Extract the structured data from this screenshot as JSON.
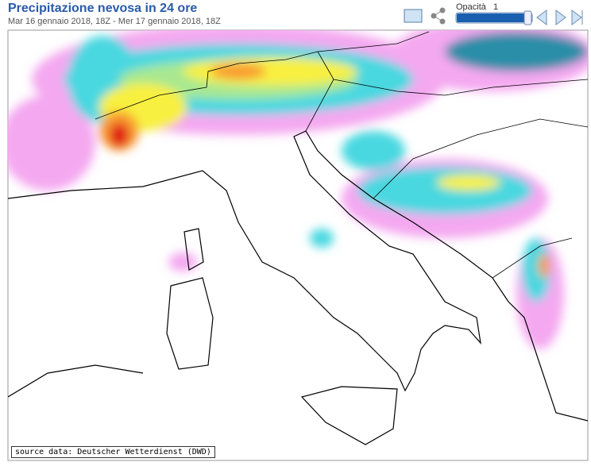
{
  "header": {
    "title": "Precipitazione nevosa in 24 ore",
    "subtitle": "Mar 16 gennaio 2018, 18Z - Mer 17 gennaio 2018, 18Z"
  },
  "controls": {
    "opacity_label": "Opacità",
    "opacity": 1
  },
  "map": {
    "source": "source data: Deutscher Wetterdienst (DWD)"
  }
}
